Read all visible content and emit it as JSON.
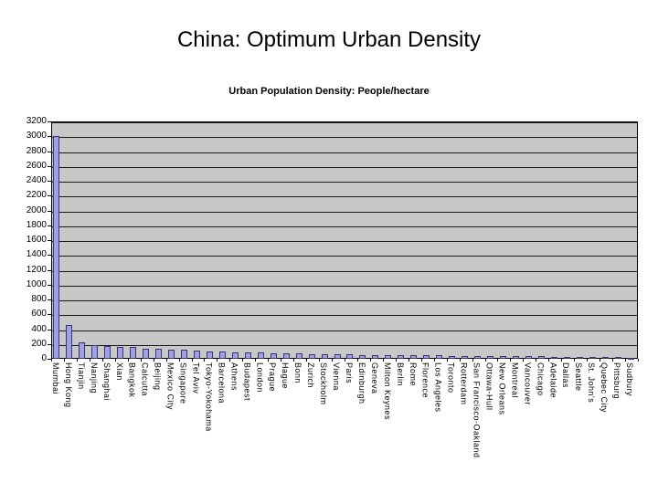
{
  "slide": {
    "title": "China: Optimum Urban Density"
  },
  "chart_data": {
    "type": "bar",
    "title": "Urban Population Density: People/hectare",
    "xlabel": "",
    "ylabel": "",
    "ylim": [
      0,
      3200
    ],
    "ytick_interval": 200,
    "grid": "horizontal",
    "legend": "none",
    "categories": [
      "Mumbai",
      "Hong Kong",
      "Tianjin",
      "Nanjing",
      "Shanghai",
      "Xian",
      "Bangkok",
      "Calcutta",
      "Beijing",
      "Mexico City",
      "Singapore",
      "Tel Aviv",
      "Tokyo-Yokohama",
      "Barcelona",
      "Athens",
      "Budapest",
      "London",
      "Prague",
      "Hague",
      "Bonn",
      "Zurich",
      "Stockholm",
      "Vienna",
      "Paris",
      "Edinburgh",
      "Geneva",
      "Milton Keynes",
      "Berlin",
      "Rome",
      "Florence",
      "Los Angeles",
      "Toronto",
      "Rotterdam",
      "San Francisco-Oakland",
      "Ottawa-Hull",
      "New Orleans",
      "Montreal",
      "Vancouver",
      "Chicago",
      "Adelaide",
      "Dallas",
      "Seattle",
      "St. John's",
      "Quebec City",
      "Pittsburg",
      "Sudbury"
    ],
    "values": [
      3000,
      450,
      220,
      190,
      175,
      165,
      155,
      140,
      135,
      125,
      120,
      110,
      100,
      95,
      90,
      85,
      80,
      75,
      70,
      68,
      65,
      62,
      60,
      58,
      55,
      52,
      50,
      48,
      47,
      45,
      44,
      42,
      40,
      40,
      38,
      36,
      35,
      33,
      32,
      30,
      28,
      26,
      25,
      22,
      20,
      18
    ],
    "colors": {
      "bar_fill": "#a0a0e6",
      "bar_border": "#38386e",
      "plot_bg": "#c8c8c8",
      "gridline": "#1a1a1a",
      "axis": "#000000"
    }
  }
}
